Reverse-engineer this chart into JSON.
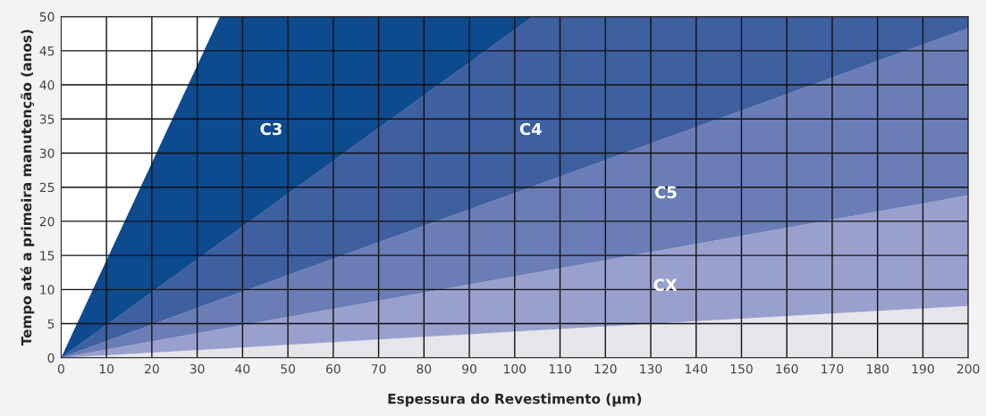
{
  "chart_data": {
    "type": "area",
    "stacked": true,
    "xlabel": "Espessura do Revestimento (µm)",
    "ylabel": "Tempo até a primeira manutenção (anos)",
    "x": [
      0,
      35,
      104,
      200
    ],
    "series": [
      {
        "color": "#e6e6ea",
        "values": [
          0,
          1.3,
          4,
          7.6
        ]
      },
      {
        "name": "CX",
        "color": "#99a0cd",
        "values": [
          0,
          2.9,
          8.4,
          16.2
        ]
      },
      {
        "name": "C5",
        "color": "#6b7db6",
        "values": [
          0,
          4.3,
          12.7,
          24.5
        ]
      },
      {
        "name": "C4",
        "color": "#3e5fa0",
        "values": [
          0,
          8.3,
          24.9,
          1.7
        ]
      },
      {
        "name": "C3",
        "color": "#0d4a8e",
        "x": [
          0,
          35,
          104
        ],
        "values": [
          0,
          33.2,
          0
        ]
      }
    ],
    "xlim": [
      0,
      200
    ],
    "ylim": [
      0,
      50
    ],
    "xticks": [
      0,
      10,
      20,
      30,
      40,
      50,
      60,
      70,
      80,
      90,
      100,
      110,
      120,
      130,
      140,
      150,
      160,
      170,
      180,
      190,
      200
    ],
    "yticks": [
      0,
      5,
      10,
      15,
      20,
      25,
      30,
      35,
      40,
      45,
      50
    ],
    "grid": true
  }
}
